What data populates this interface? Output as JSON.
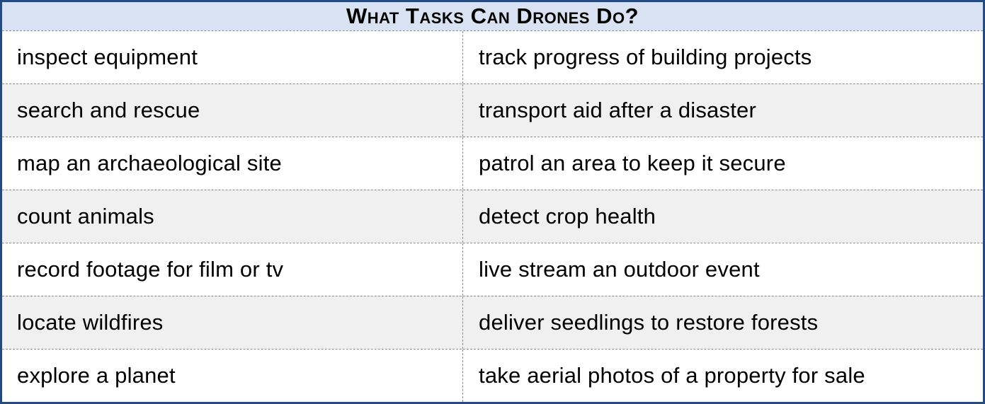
{
  "table": {
    "title": "What Tasks Can Drones Do?",
    "rows": [
      {
        "left": "inspect equipment",
        "right": "track progress of building projects"
      },
      {
        "left": "search and rescue",
        "right": "transport aid after a disaster"
      },
      {
        "left": "map an archaeological site",
        "right": "patrol an area to keep it secure"
      },
      {
        "left": "count animals",
        "right": "detect crop health"
      },
      {
        "left": "record footage for film or tv",
        "right": "live stream an outdoor event"
      },
      {
        "left": "locate wildfires",
        "right": "deliver seedlings to restore forests"
      },
      {
        "left": "explore a planet",
        "right": "take aerial photos of a property for sale"
      }
    ]
  },
  "colors": {
    "outer_border": "#274a7e",
    "header_background": "#d9e2f3",
    "alt_row_background": "#f0f0f0",
    "inner_border": "#8c8c8c",
    "text": "#000000"
  }
}
